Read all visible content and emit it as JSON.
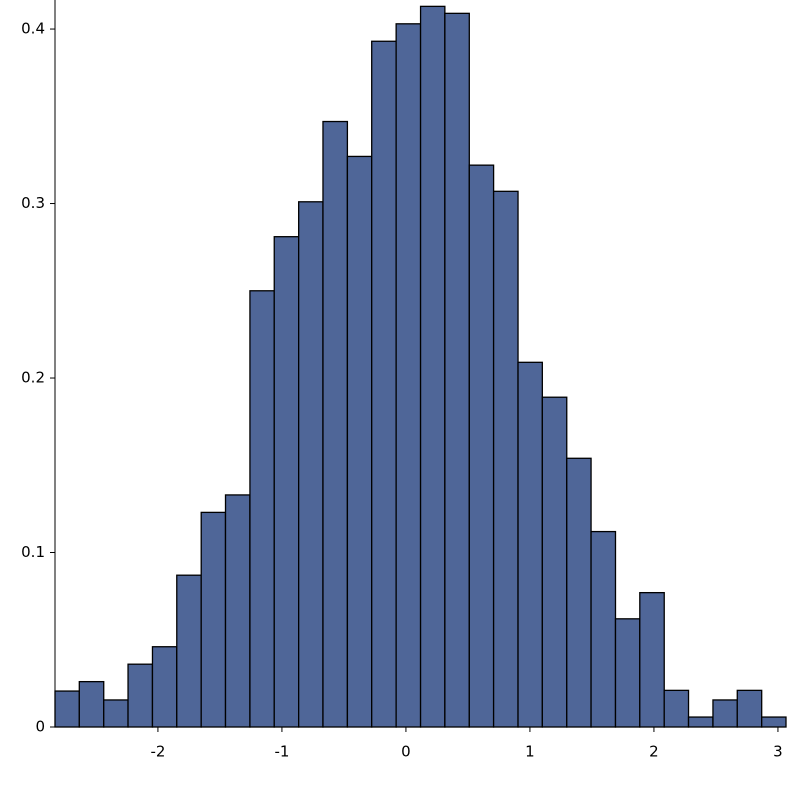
{
  "chart_data": {
    "type": "histogram",
    "bins": [
      -2.83,
      -2.634,
      -2.437,
      -2.241,
      -2.044,
      -1.848,
      -1.651,
      -1.455,
      -1.258,
      -1.062,
      -0.865,
      -0.669,
      -0.472,
      -0.276,
      -0.079,
      0.118,
      0.314,
      0.511,
      0.707,
      0.904,
      1.1,
      1.297,
      1.493,
      1.69,
      1.886,
      2.083,
      2.279,
      2.476,
      2.672,
      2.869,
      3.065
    ],
    "values": [
      0.0206,
      0.026,
      0.0155,
      0.036,
      0.046,
      0.087,
      0.123,
      0.133,
      0.25,
      0.281,
      0.301,
      0.347,
      0.327,
      0.393,
      0.403,
      0.413,
      0.409,
      0.322,
      0.307,
      0.209,
      0.189,
      0.154,
      0.112,
      0.062,
      0.077,
      0.021,
      0.0057,
      0.0155,
      0.021,
      0.0057
    ],
    "color": "#4f6698",
    "xlim": [
      -2.83,
      3.065
    ],
    "ylim": [
      0,
      0.4155
    ],
    "xticks": [
      -2,
      -1,
      0,
      1,
      2,
      3
    ],
    "yticks": [
      0,
      0.1,
      0.2,
      0.3,
      0.4
    ]
  }
}
